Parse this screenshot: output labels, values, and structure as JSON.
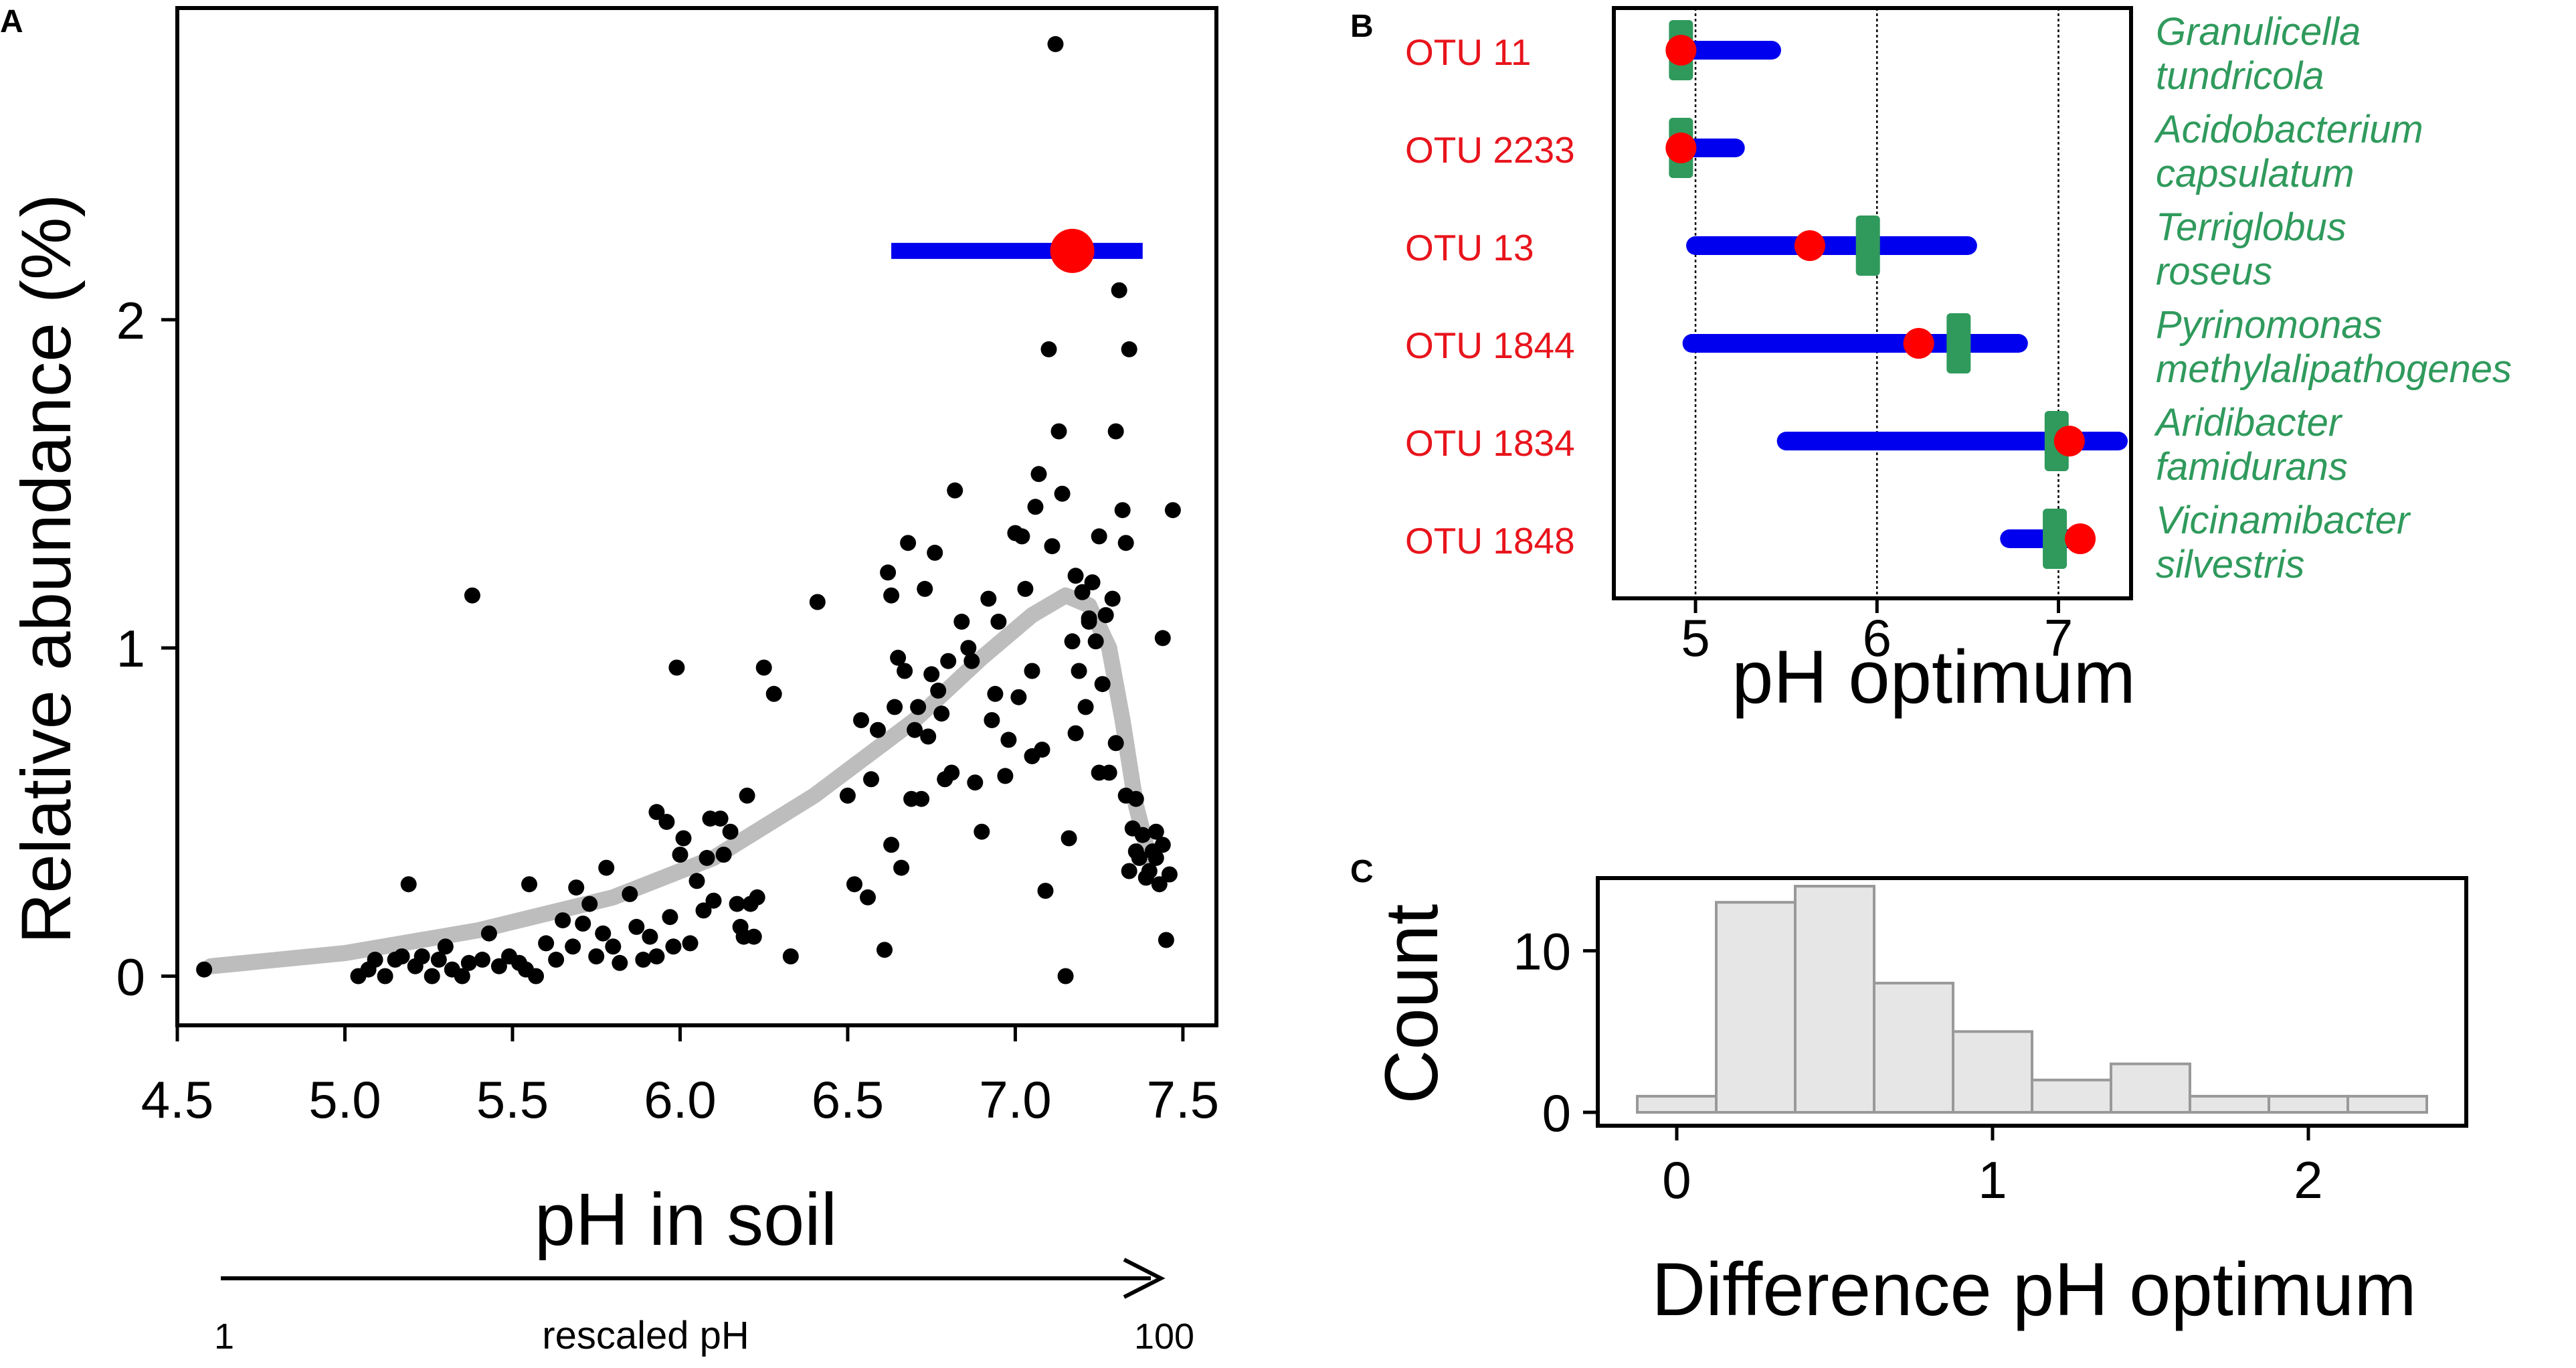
{
  "colors": {
    "points": "#000000",
    "fit": "#bdbdbd",
    "interval": "#0000ee",
    "optimum": "#ff0000",
    "green": "#2f9a5c",
    "otu_label": "#e8141c",
    "hist_fill": "#e6e6e6",
    "hist_edge": "#999999"
  },
  "chart_data": [
    {
      "panel": "A",
      "type": "scatter",
      "xlabel": "pH in soil",
      "ylabel": "Relative abundance (%)",
      "xlim": [
        4.5,
        7.6
      ],
      "ylim": [
        -0.15,
        2.95
      ],
      "xticks": [
        4.5,
        5.0,
        5.5,
        6.0,
        6.5,
        7.0,
        7.5
      ],
      "xtick_labels": [
        "4.5",
        "5.0",
        "5.5",
        "6.0",
        "6.5",
        "7.0",
        "7.5"
      ],
      "yticks": [
        0,
        1,
        2
      ],
      "ytick_labels": [
        "0",
        "1",
        "2"
      ],
      "points": [
        [
          4.58,
          0.02
        ],
        [
          5.04,
          0.0
        ],
        [
          5.07,
          0.02
        ],
        [
          5.09,
          0.05
        ],
        [
          5.12,
          0.0
        ],
        [
          5.15,
          0.05
        ],
        [
          5.17,
          0.06
        ],
        [
          5.19,
          0.28
        ],
        [
          5.21,
          0.03
        ],
        [
          5.23,
          0.06
        ],
        [
          5.26,
          0.0
        ],
        [
          5.28,
          0.05
        ],
        [
          5.3,
          0.09
        ],
        [
          5.32,
          0.02
        ],
        [
          5.35,
          0.0
        ],
        [
          5.37,
          0.04
        ],
        [
          5.38,
          1.16
        ],
        [
          5.41,
          0.05
        ],
        [
          5.43,
          0.13
        ],
        [
          5.46,
          0.03
        ],
        [
          5.49,
          0.06
        ],
        [
          5.52,
          0.04
        ],
        [
          5.54,
          0.02
        ],
        [
          5.55,
          0.28
        ],
        [
          5.57,
          0.0
        ],
        [
          5.6,
          0.1
        ],
        [
          5.63,
          0.05
        ],
        [
          5.65,
          0.17
        ],
        [
          5.68,
          0.09
        ],
        [
          5.69,
          0.27
        ],
        [
          5.71,
          0.16
        ],
        [
          5.73,
          0.22
        ],
        [
          5.75,
          0.06
        ],
        [
          5.77,
          0.13
        ],
        [
          5.78,
          0.33
        ],
        [
          5.8,
          0.09
        ],
        [
          5.82,
          0.04
        ],
        [
          5.85,
          0.25
        ],
        [
          5.87,
          0.15
        ],
        [
          5.89,
          0.05
        ],
        [
          5.91,
          0.12
        ],
        [
          5.93,
          0.06
        ],
        [
          5.93,
          0.5
        ],
        [
          5.96,
          0.47
        ],
        [
          5.97,
          0.18
        ],
        [
          5.98,
          0.09
        ],
        [
          5.99,
          0.94
        ],
        [
          6.0,
          0.37
        ],
        [
          6.01,
          0.42
        ],
        [
          6.03,
          0.1
        ],
        [
          6.05,
          0.29
        ],
        [
          6.07,
          0.2
        ],
        [
          6.08,
          0.36
        ],
        [
          6.09,
          0.48
        ],
        [
          6.1,
          0.23
        ],
        [
          6.12,
          0.48
        ],
        [
          6.13,
          0.37
        ],
        [
          6.15,
          0.44
        ],
        [
          6.17,
          0.22
        ],
        [
          6.18,
          0.15
        ],
        [
          6.19,
          0.12
        ],
        [
          6.2,
          0.55
        ],
        [
          6.21,
          0.22
        ],
        [
          6.22,
          0.12
        ],
        [
          6.23,
          0.24
        ],
        [
          6.25,
          0.94
        ],
        [
          6.28,
          0.86
        ],
        [
          6.33,
          0.06
        ],
        [
          6.41,
          1.14
        ],
        [
          6.5,
          0.55
        ],
        [
          6.52,
          0.28
        ],
        [
          6.54,
          0.78
        ],
        [
          6.56,
          0.24
        ],
        [
          6.57,
          0.6
        ],
        [
          6.59,
          0.75
        ],
        [
          6.61,
          0.08
        ],
        [
          6.62,
          1.23
        ],
        [
          6.63,
          0.4
        ],
        [
          6.63,
          1.16
        ],
        [
          6.64,
          0.82
        ],
        [
          6.65,
          0.97
        ],
        [
          6.66,
          0.33
        ],
        [
          6.67,
          0.93
        ],
        [
          6.68,
          1.32
        ],
        [
          6.69,
          0.54
        ],
        [
          6.7,
          0.75
        ],
        [
          6.71,
          0.82
        ],
        [
          6.72,
          0.54
        ],
        [
          6.73,
          1.18
        ],
        [
          6.74,
          0.73
        ],
        [
          6.75,
          0.92
        ],
        [
          6.76,
          1.29
        ],
        [
          6.77,
          0.87
        ],
        [
          6.78,
          0.8
        ],
        [
          6.79,
          0.6
        ],
        [
          6.8,
          0.96
        ],
        [
          6.81,
          0.62
        ],
        [
          6.82,
          1.48
        ],
        [
          6.84,
          1.08
        ],
        [
          6.86,
          1.0
        ],
        [
          6.88,
          0.59
        ],
        [
          6.9,
          0.44
        ],
        [
          6.92,
          1.15
        ],
        [
          6.93,
          0.78
        ],
        [
          6.95,
          1.08
        ],
        [
          6.97,
          0.61
        ],
        [
          6.98,
          0.72
        ],
        [
          7.0,
          1.35
        ],
        [
          7.01,
          0.85
        ],
        [
          7.02,
          1.34
        ],
        [
          7.03,
          1.18
        ],
        [
          7.05,
          0.93
        ],
        [
          7.06,
          1.43
        ],
        [
          7.07,
          1.53
        ],
        [
          7.08,
          0.69
        ],
        [
          7.09,
          0.26
        ],
        [
          7.1,
          1.91
        ],
        [
          7.11,
          1.31
        ],
        [
          7.12,
          2.84
        ],
        [
          7.13,
          1.66
        ],
        [
          7.14,
          1.47
        ],
        [
          7.15,
          0.0
        ],
        [
          7.16,
          0.42
        ],
        [
          7.17,
          1.02
        ],
        [
          7.18,
          1.22
        ],
        [
          7.19,
          0.93
        ],
        [
          7.2,
          1.17
        ],
        [
          7.21,
          0.82
        ],
        [
          7.22,
          1.09
        ],
        [
          7.23,
          1.2
        ],
        [
          7.24,
          1.02
        ],
        [
          7.25,
          1.34
        ],
        [
          7.26,
          0.89
        ],
        [
          7.27,
          1.1
        ],
        [
          7.28,
          0.62
        ],
        [
          7.29,
          1.15
        ],
        [
          7.3,
          0.71
        ],
        [
          7.31,
          2.09
        ],
        [
          7.32,
          1.42
        ],
        [
          7.33,
          0.55
        ],
        [
          7.34,
          1.91
        ],
        [
          7.35,
          0.45
        ],
        [
          7.36,
          0.38
        ],
        [
          7.37,
          0.36
        ],
        [
          7.38,
          0.43
        ],
        [
          7.39,
          0.3
        ],
        [
          7.4,
          0.32
        ],
        [
          7.41,
          0.38
        ],
        [
          7.42,
          0.36
        ],
        [
          7.43,
          0.28
        ],
        [
          7.44,
          0.4
        ],
        [
          7.45,
          0.11
        ],
        [
          7.46,
          0.31
        ],
        [
          7.47,
          1.42
        ],
        [
          7.3,
          1.66
        ],
        [
          7.22,
          1.08
        ],
        [
          7.33,
          1.32
        ],
        [
          7.36,
          0.54
        ],
        [
          7.44,
          1.03
        ],
        [
          7.25,
          0.62
        ],
        [
          7.05,
          0.67
        ],
        [
          7.34,
          0.32
        ],
        [
          7.42,
          0.44
        ],
        [
          7.18,
          0.74
        ],
        [
          6.94,
          0.86
        ],
        [
          6.87,
          0.96
        ]
      ],
      "fit": [
        [
          4.6,
          0.03
        ],
        [
          5.0,
          0.07
        ],
        [
          5.4,
          0.14
        ],
        [
          5.8,
          0.24
        ],
        [
          6.1,
          0.36
        ],
        [
          6.4,
          0.55
        ],
        [
          6.7,
          0.78
        ],
        [
          6.9,
          0.97
        ],
        [
          7.05,
          1.1
        ],
        [
          7.15,
          1.16
        ],
        [
          7.22,
          1.13
        ],
        [
          7.28,
          1.0
        ],
        [
          7.32,
          0.78
        ],
        [
          7.36,
          0.52
        ],
        [
          7.4,
          0.36
        ]
      ],
      "interval": [
        6.63,
        7.38
      ],
      "interval_y": 2.21,
      "optimum": 7.17,
      "rescaled_axis": {
        "start_label": "1",
        "end_label": "100",
        "label": "rescaled pH"
      }
    },
    {
      "panel": "B",
      "type": "interval",
      "xlabel": "pH optimum",
      "xlim": [
        4.55,
        7.4
      ],
      "xticks": [
        5,
        6,
        7
      ],
      "xtick_labels": [
        "5",
        "6",
        "7"
      ],
      "gridlines": [
        5,
        6,
        7
      ],
      "rows": [
        {
          "otu": "OTU 11",
          "species1": "Granulicella",
          "species2": "tundricola",
          "low": 4.92,
          "high": 5.42,
          "red": 4.92,
          "green": 4.92
        },
        {
          "otu": "OTU 2233",
          "species1": "Acidobacterium",
          "species2": "capsulatum",
          "low": 4.92,
          "high": 5.22,
          "red": 4.92,
          "green": 4.92
        },
        {
          "otu": "OTU 13",
          "species1": "Terriglobus",
          "species2": "roseus",
          "low": 5.0,
          "high": 6.5,
          "red": 5.63,
          "green": 5.95
        },
        {
          "otu": "OTU 1844",
          "species1": "Pyrinomonas",
          "species2": "methylalipathogenes",
          "low": 4.98,
          "high": 6.78,
          "red": 6.23,
          "green": 6.45
        },
        {
          "otu": "OTU 1834",
          "species1": "Aridibacter",
          "species2": "famidurans",
          "low": 5.5,
          "high": 7.33,
          "red": 7.06,
          "green": 6.99
        },
        {
          "otu": "OTU 1848",
          "species1": "Vicinamibacter",
          "species2": "silvestris",
          "low": 6.73,
          "high": 7.1,
          "red": 7.12,
          "green": 6.98
        }
      ]
    },
    {
      "panel": "C",
      "type": "bar",
      "xlabel": "Difference pH optimum",
      "ylabel": "Count",
      "xlim": [
        -0.25,
        2.5
      ],
      "ylim": [
        0,
        14.5
      ],
      "xticks": [
        0,
        1,
        2
      ],
      "xtick_labels": [
        "0",
        "1",
        "2"
      ],
      "yticks": [
        0,
        10
      ],
      "ytick_labels": [
        "0",
        "10"
      ],
      "bins": [
        [
          -0.125,
          0.125,
          1
        ],
        [
          0.125,
          0.375,
          13
        ],
        [
          0.375,
          0.625,
          14
        ],
        [
          0.625,
          0.875,
          8
        ],
        [
          0.875,
          1.125,
          5
        ],
        [
          1.125,
          1.375,
          2
        ],
        [
          1.375,
          1.625,
          3
        ],
        [
          1.625,
          1.875,
          1
        ],
        [
          1.875,
          2.125,
          1
        ],
        [
          2.125,
          2.375,
          1
        ]
      ]
    }
  ]
}
